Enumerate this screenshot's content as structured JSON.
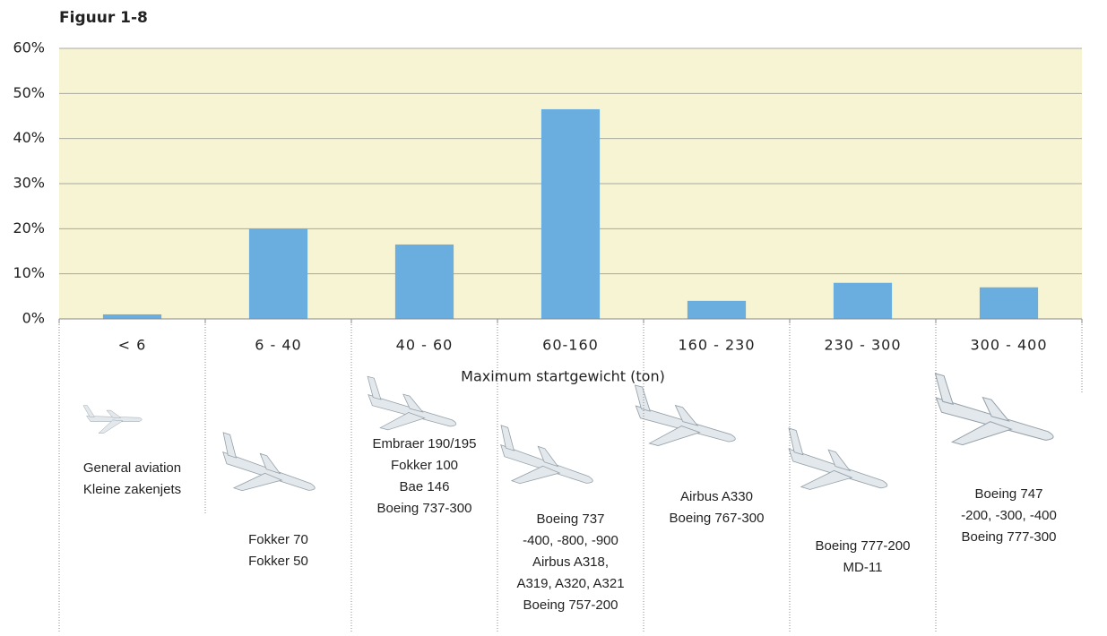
{
  "chart_data": {
    "type": "bar",
    "title": "Figuur 1-8",
    "categories": [
      "< 6",
      "6 - 40",
      "40 - 60",
      "60-160",
      "160 - 230",
      "230 - 300",
      "300 - 400"
    ],
    "values": [
      1,
      20,
      16.5,
      46.5,
      4,
      8,
      7
    ],
    "color": "#6aaee0",
    "ylim": [
      0,
      60
    ],
    "yticks": [
      {
        "value": 0,
        "label": "0%"
      },
      {
        "value": 10,
        "label": "10%"
      },
      {
        "value": 20,
        "label": "20%"
      },
      {
        "value": 30,
        "label": "30%"
      },
      {
        "value": 40,
        "label": "40%"
      },
      {
        "value": 50,
        "label": "50%"
      },
      {
        "value": 60,
        "label": "60%"
      }
    ],
    "grid": true,
    "x_label": "Maximum startgewicht (ton)",
    "annotations": [
      [
        "General aviation",
        "Kleine zakenjets"
      ],
      [
        "Fokker 70",
        "Fokker 50"
      ],
      [
        "Embraer 190/195",
        "Fokker 100",
        "Bae 146",
        "Boeing 737-300"
      ],
      [
        "Boeing 737",
        "-400, -800, -900",
        "Airbus A318,",
        "A319, A320, A321",
        "Boeing 757-200"
      ],
      [
        "Airbus A330",
        "Boeing 767-300"
      ],
      [
        "Boeing 777-200",
        "MD-11"
      ],
      [
        "Boeing 747",
        "-200, -300, -400",
        "Boeing 777-300"
      ]
    ]
  }
}
